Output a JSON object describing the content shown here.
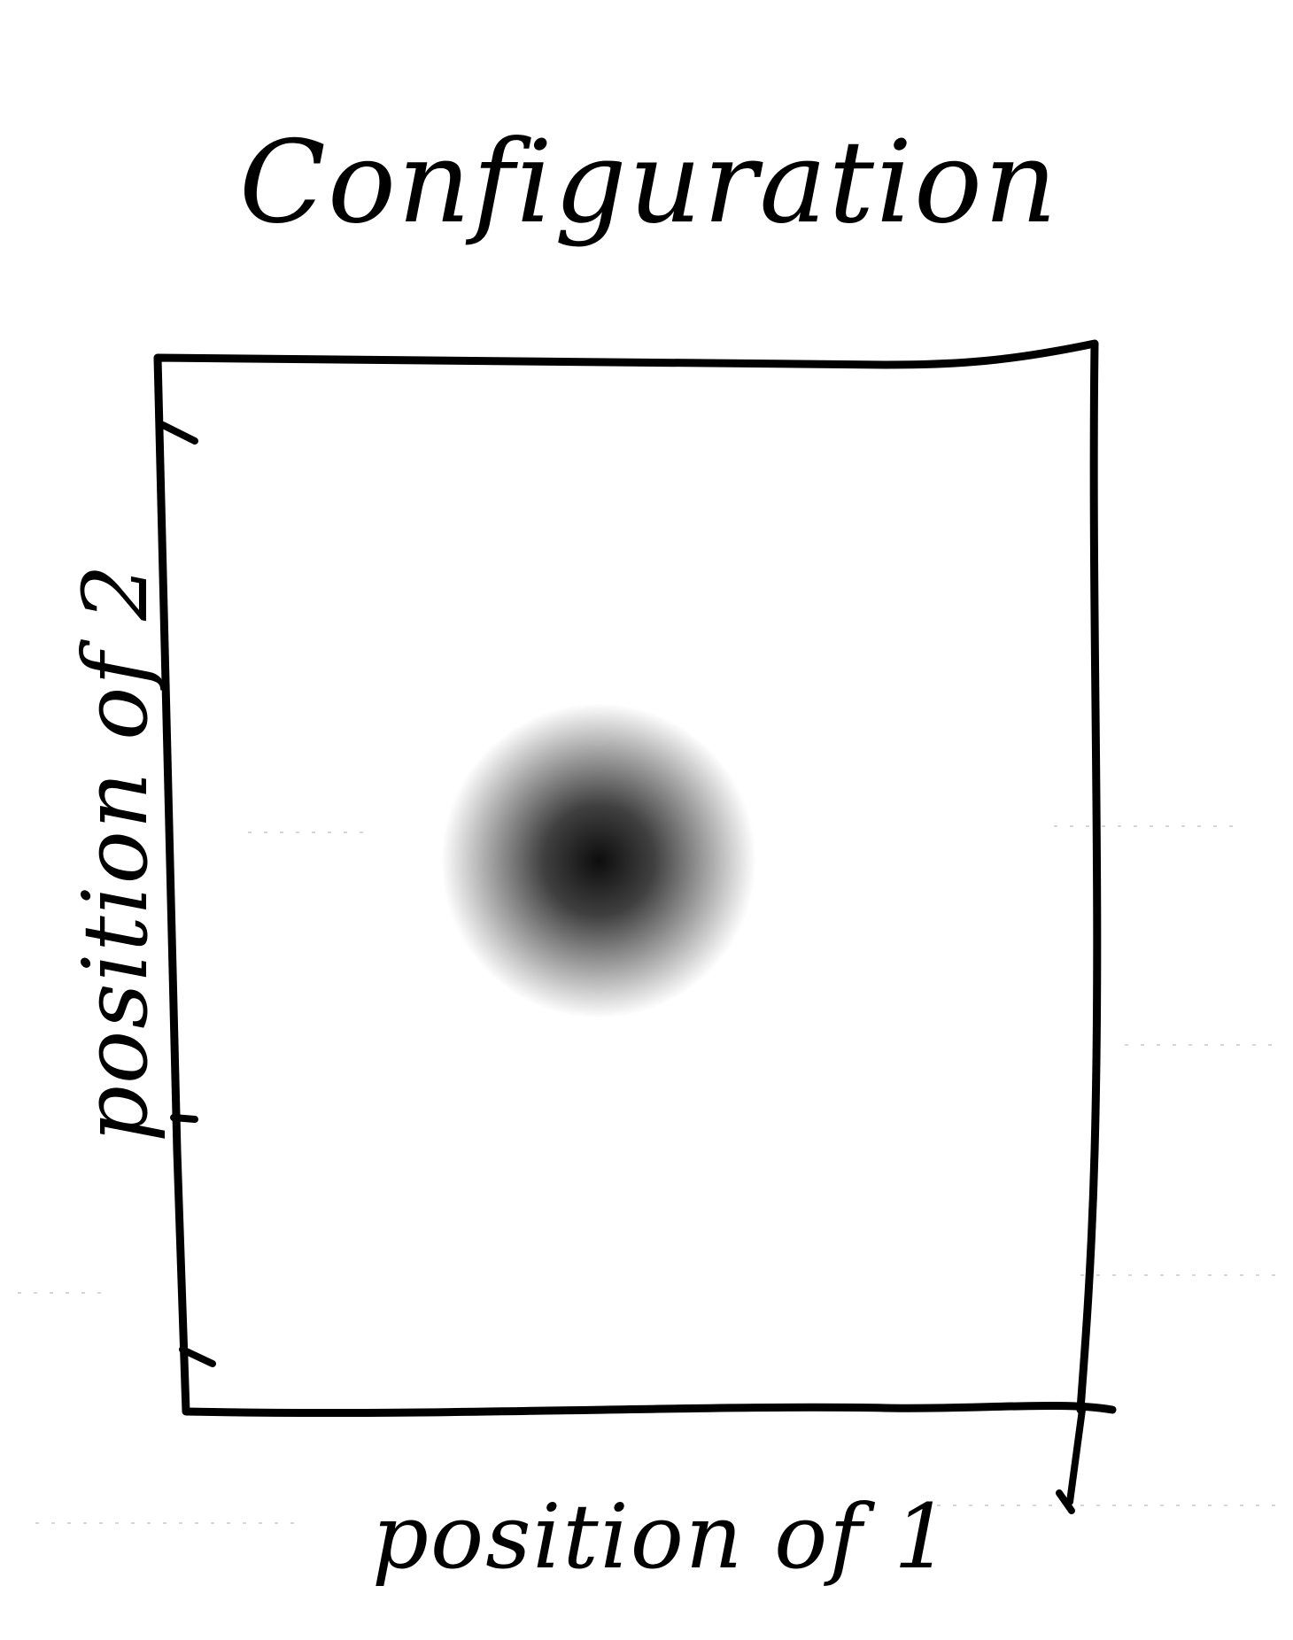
{
  "diagram": {
    "title": "Configuration",
    "x_axis_label": "position of 1",
    "y_axis_label": "position of 2",
    "ink_color": "#000000",
    "blob_color": "#000000",
    "background": "#ffffff"
  }
}
